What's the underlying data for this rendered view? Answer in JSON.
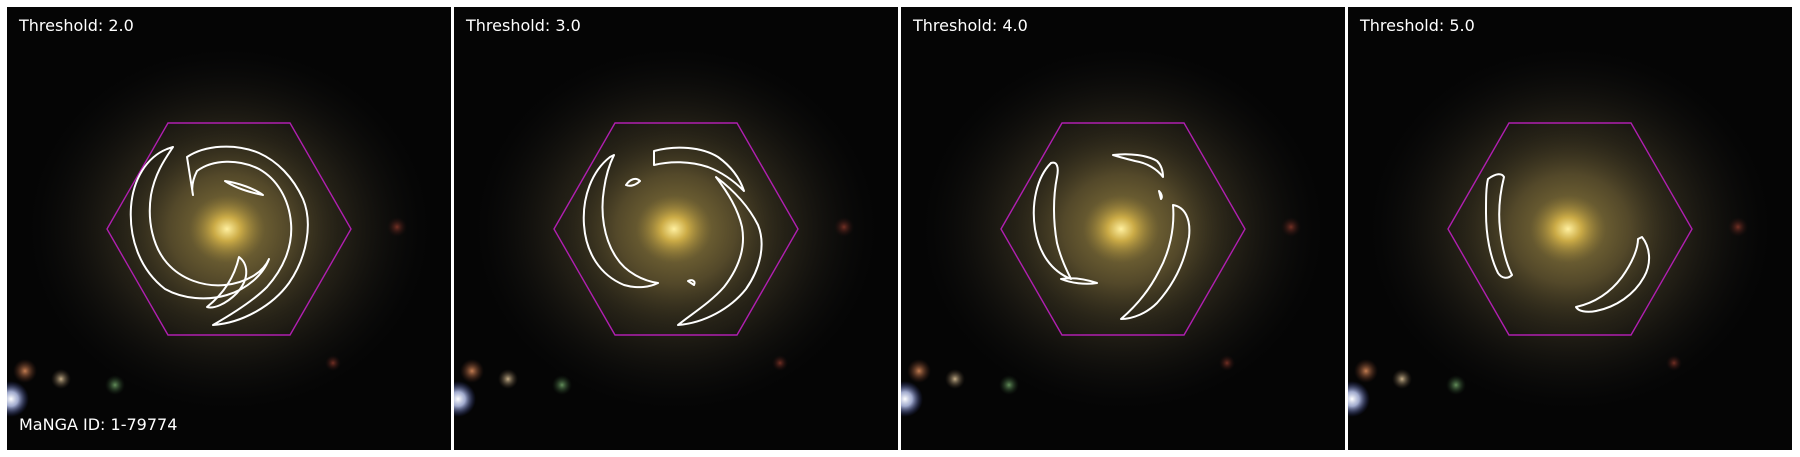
{
  "panels": [
    {
      "title": "Threshold: 2.0"
    },
    {
      "title": "Threshold: 3.0"
    },
    {
      "title": "Threshold: 4.0"
    },
    {
      "title": "Threshold: 5.0"
    }
  ],
  "galaxy_id_label": "MaNGA ID: 1-79774",
  "colors": {
    "hexagon": "#b01fb0",
    "contour": "#ffffff",
    "galaxy_core": "#ffdc6a",
    "background": "#050505"
  }
}
